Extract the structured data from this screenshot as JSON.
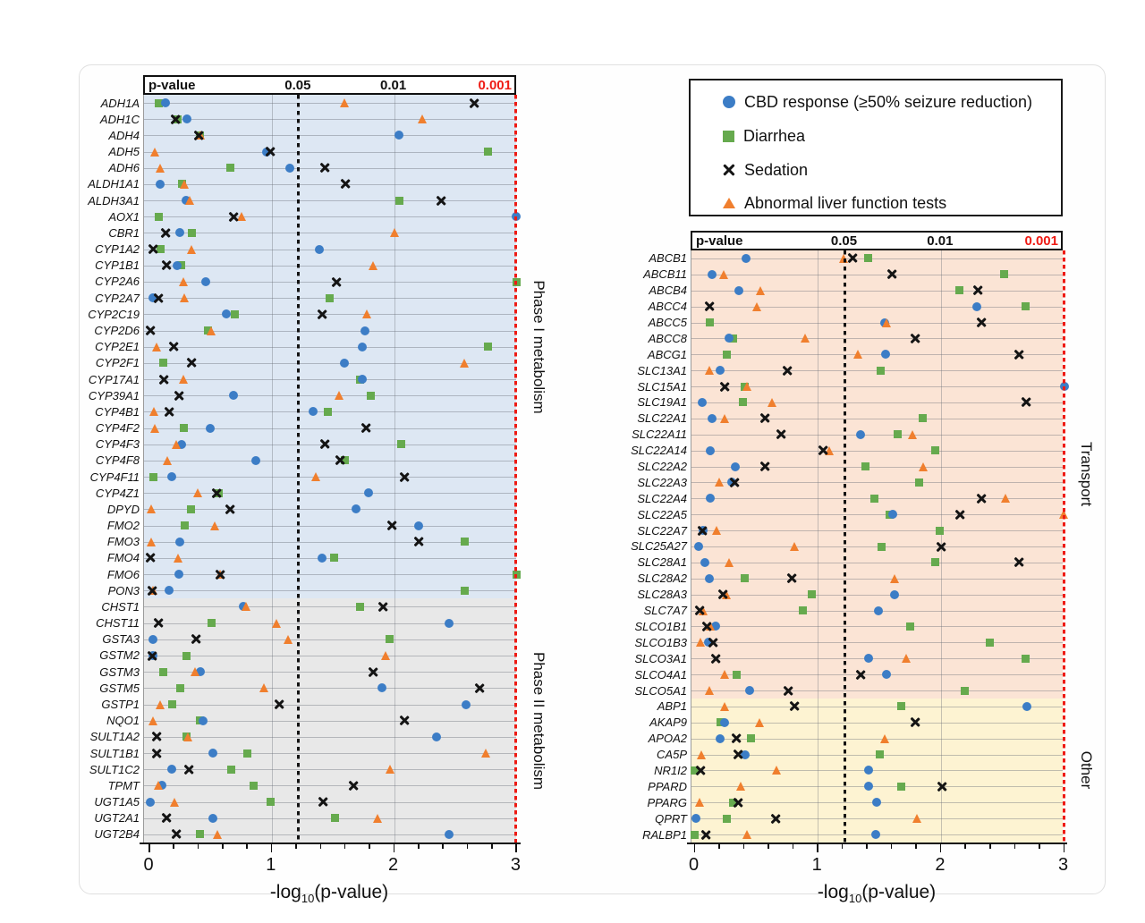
{
  "figure": {
    "description": "Two-panel dot plot of gene-level p-values for CBD response and adverse effects",
    "colors": {
      "cbd": "#3c7dc6",
      "diarrhea": "#66aa4e",
      "sedation": "#141414",
      "liver": "#f07f2e",
      "significance_red": "#ee1b14",
      "phase1_bg": "#dde7f3",
      "phase2_bg": "#e8e8e8",
      "transport_bg": "#fbe4d5",
      "other_bg": "#fdf3d2"
    }
  },
  "legend": {
    "items": [
      {
        "series": "cbd",
        "label": "CBD response (≥50% seizure reduction)"
      },
      {
        "series": "diarrhea",
        "label": "Diarrhea"
      },
      {
        "series": "sedation",
        "label": "Sedation"
      },
      {
        "series": "liver",
        "label": "Abnormal liver function tests"
      }
    ]
  },
  "series": [
    {
      "id": "cbd",
      "label": "CBD response (≥50% seizure reduction)",
      "marker": "circle",
      "color": "#3c7dc6"
    },
    {
      "id": "diarrhea",
      "label": "Diarrhea",
      "marker": "square",
      "color": "#66aa4e"
    },
    {
      "id": "sedation",
      "label": "Sedation",
      "marker": "x",
      "color": "#141414"
    },
    {
      "id": "liver",
      "label": "Abnormal liver function tests",
      "marker": "triangle",
      "color": "#f07f2e"
    }
  ],
  "pvalue_header": {
    "label": "p-value",
    "marks": [
      {
        "text": "0.05",
        "value": 1.22,
        "color": "#111111"
      },
      {
        "text": "0.01",
        "value": 2.0,
        "color": "#111111"
      },
      {
        "text": "0.001",
        "value": 3.0,
        "color": "#ee1b14"
      }
    ]
  },
  "axis": {
    "title_prefix": "-log",
    "title_sub": "10",
    "title_suffix": "(p-value)",
    "ticks": [
      "0",
      "1",
      "2",
      "3"
    ],
    "xlim": [
      0,
      3
    ],
    "minor_step": 0.2
  },
  "thresholds": {
    "p05_value": 1.22,
    "p001_value": 3.0
  },
  "chart_data": [
    {
      "panel": "left",
      "type": "scatter",
      "xlabel": "-log10(p-value)",
      "xlim": [
        0,
        3
      ],
      "series_order": [
        "cbd",
        "diarrhea",
        "sedation",
        "liver"
      ],
      "sections": [
        {
          "label": "Phase I metabolism",
          "bg": "#dde7f3",
          "rows": [
            [
              "ADH1A",
              0.13,
              0.08,
              2.65,
              1.6
            ],
            [
              "ADH1C",
              0.31,
              0.23,
              0.21,
              2.23
            ],
            [
              "ADH4",
              2.04,
              0.41,
              0.4,
              0.42
            ],
            [
              "ADH5",
              0.96,
              2.77,
              0.99,
              0.05
            ],
            [
              "ADH6",
              1.15,
              0.66,
              1.43,
              0.09
            ],
            [
              "ALDH1A1",
              0.09,
              0.27,
              1.6,
              0.29
            ],
            [
              "ALDH3A1",
              0.3,
              2.04,
              2.38,
              0.33
            ],
            [
              "AOX1",
              3.0,
              0.08,
              0.69,
              0.76
            ],
            [
              "CBR1",
              0.25,
              0.35,
              0.13,
              2.01
            ],
            [
              "CYP1A2",
              1.39,
              0.09,
              0.03,
              0.35
            ],
            [
              "CYP1B1",
              0.23,
              0.26,
              0.14,
              1.83
            ],
            [
              "CYP2A6",
              0.46,
              3.0,
              1.53,
              0.28
            ],
            [
              "CYP2A7",
              0.03,
              1.47,
              0.07,
              0.29
            ],
            [
              "CYP2C19",
              0.63,
              0.7,
              1.41,
              1.78
            ],
            [
              "CYP2D6",
              1.76,
              0.48,
              0.01,
              0.51
            ],
            [
              "CYP2E1",
              1.74,
              2.77,
              0.2,
              0.06
            ],
            [
              "CYP2F1",
              1.59,
              0.11,
              0.34,
              2.58
            ],
            [
              "CYP17A1",
              1.74,
              1.72,
              0.12,
              0.28
            ],
            [
              "CYP39A1",
              0.69,
              1.81,
              0.24,
              1.55
            ],
            [
              "CYP4B1",
              1.34,
              1.46,
              0.16,
              0.04
            ],
            [
              "CYP4F2",
              0.5,
              0.28,
              1.77,
              0.05
            ],
            [
              "CYP4F3",
              0.26,
              2.06,
              1.43,
              0.22
            ],
            [
              "CYP4F8",
              0.87,
              1.6,
              1.56,
              0.15
            ],
            [
              "CYP4F11",
              0.18,
              0.03,
              2.08,
              1.36
            ],
            [
              "CYP4Z1",
              1.79,
              0.57,
              0.55,
              0.4
            ],
            [
              "DPYD",
              1.69,
              0.34,
              0.66,
              0.02
            ],
            [
              "FMO2",
              2.2,
              0.29,
              1.98,
              0.54
            ],
            [
              "FMO3",
              0.25,
              2.58,
              2.2,
              0.02
            ],
            [
              "FMO4",
              1.41,
              1.51,
              0.01,
              0.24
            ],
            [
              "FMO6",
              0.24,
              3.0,
              0.58,
              0.58
            ],
            [
              "PON3",
              0.16,
              2.58,
              0.02,
              0.03
            ]
          ]
        },
        {
          "label": "Phase II metabolism",
          "bg": "#e8e8e8",
          "rows": [
            [
              "CHST1",
              0.77,
              1.72,
              1.91,
              0.79
            ],
            [
              "CHST11",
              2.45,
              0.51,
              0.07,
              1.04
            ],
            [
              "GSTA3",
              0.03,
              1.96,
              0.38,
              1.14
            ],
            [
              "GSTM2",
              0.03,
              0.3,
              0.02,
              1.93
            ],
            [
              "GSTM3",
              0.42,
              0.11,
              1.83,
              0.38
            ],
            [
              "GSTM5",
              1.9,
              0.25,
              2.7,
              0.94
            ],
            [
              "GSTP1",
              2.59,
              0.19,
              1.06,
              0.09
            ],
            [
              "NQO1",
              0.44,
              0.41,
              2.08,
              0.03
            ],
            [
              "SULT1A2",
              2.35,
              0.3,
              0.06,
              0.32
            ],
            [
              "SULT1B1",
              0.52,
              0.8,
              0.06,
              2.75
            ],
            [
              "SULT1C2",
              0.18,
              0.67,
              0.32,
              1.97
            ],
            [
              "TPMT",
              0.1,
              0.85,
              1.67,
              0.08
            ],
            [
              "UGT1A5",
              0.01,
              0.99,
              1.42,
              0.21
            ],
            [
              "UGT2A1",
              0.52,
              1.52,
              0.14,
              1.87
            ],
            [
              "UGT2B4",
              2.45,
              0.41,
              0.22,
              0.56
            ]
          ]
        }
      ]
    },
    {
      "panel": "right",
      "type": "scatter",
      "xlabel": "-log10(p-value)",
      "xlim": [
        0,
        3
      ],
      "series_order": [
        "cbd",
        "diarrhea",
        "sedation",
        "liver"
      ],
      "sections": [
        {
          "label": "Transport",
          "bg": "#fbe4d5",
          "rows": [
            [
              "ABCB1",
              0.42,
              1.41,
              1.28,
              1.21
            ],
            [
              "ABCB11",
              0.14,
              2.51,
              1.6,
              0.24
            ],
            [
              "ABCB4",
              0.36,
              2.15,
              2.3,
              0.54
            ],
            [
              "ABCC4",
              2.29,
              2.69,
              0.12,
              0.51
            ],
            [
              "ABCC5",
              1.54,
              0.12,
              2.33,
              1.56
            ],
            [
              "ABCC8",
              0.28,
              0.31,
              1.79,
              0.9
            ],
            [
              "ABCG1",
              1.55,
              0.26,
              2.63,
              1.33
            ],
            [
              "SLC13A1",
              0.21,
              1.51,
              0.75,
              0.12
            ],
            [
              "SLC15A1",
              3.0,
              0.41,
              0.24,
              0.43
            ],
            [
              "SLC19A1",
              0.06,
              0.39,
              2.69,
              0.63
            ],
            [
              "SLC22A1",
              0.14,
              1.85,
              0.57,
              0.25
            ],
            [
              "SLC22A11",
              1.35,
              1.65,
              0.7,
              1.77
            ],
            [
              "SLC22A14",
              0.13,
              1.95,
              1.04,
              1.1
            ],
            [
              "SLC22A2",
              0.33,
              1.39,
              0.57,
              1.86
            ],
            [
              "SLC22A3",
              0.3,
              1.82,
              0.32,
              0.2
            ],
            [
              "SLC22A4",
              0.13,
              1.46,
              2.33,
              2.53
            ],
            [
              "SLC22A5",
              1.61,
              1.58,
              2.15,
              3.0
            ],
            [
              "SLC22A7",
              0.07,
              1.99,
              0.06,
              0.18
            ],
            [
              "SLC25A27",
              0.03,
              1.52,
              2.0,
              0.81
            ],
            [
              "SLC28A1",
              0.08,
              1.95,
              2.63,
              0.28
            ],
            [
              "SLC28A2",
              0.12,
              0.41,
              0.79,
              1.63
            ],
            [
              "SLC28A3",
              1.62,
              0.95,
              0.23,
              0.26
            ],
            [
              "SLC7A7",
              1.49,
              0.88,
              0.04,
              0.07
            ],
            [
              "SLCO1B1",
              0.17,
              1.75,
              0.1,
              0.13
            ],
            [
              "SLCO1B3",
              0.11,
              2.4,
              0.15,
              0.05
            ],
            [
              "SLCO3A1",
              1.41,
              2.69,
              0.17,
              1.72
            ],
            [
              "SLCO4A1",
              1.56,
              0.34,
              1.35,
              0.25
            ],
            [
              "SLCO5A1",
              0.45,
              2.19,
              0.76,
              0.12
            ]
          ]
        },
        {
          "label": "Other",
          "bg": "#fdf3d2",
          "rows": [
            [
              "ABP1",
              2.7,
              1.68,
              0.81,
              0.25
            ],
            [
              "AKAP9",
              0.24,
              0.21,
              1.79,
              0.53
            ],
            [
              "APOA2",
              0.21,
              0.46,
              0.34,
              1.55
            ],
            [
              "CA5P",
              0.41,
              1.5,
              0.35,
              0.06
            ],
            [
              "NR1I2",
              1.41,
              0.0,
              0.05,
              0.67
            ],
            [
              "PPARD",
              1.41,
              1.68,
              2.01,
              0.38
            ],
            [
              "PPARG",
              1.48,
              0.31,
              0.35,
              0.04
            ],
            [
              "QPRT",
              0.01,
              0.26,
              0.66,
              1.81
            ],
            [
              "RALBP1",
              1.47,
              0.0,
              0.09,
              0.43
            ]
          ]
        }
      ]
    }
  ]
}
